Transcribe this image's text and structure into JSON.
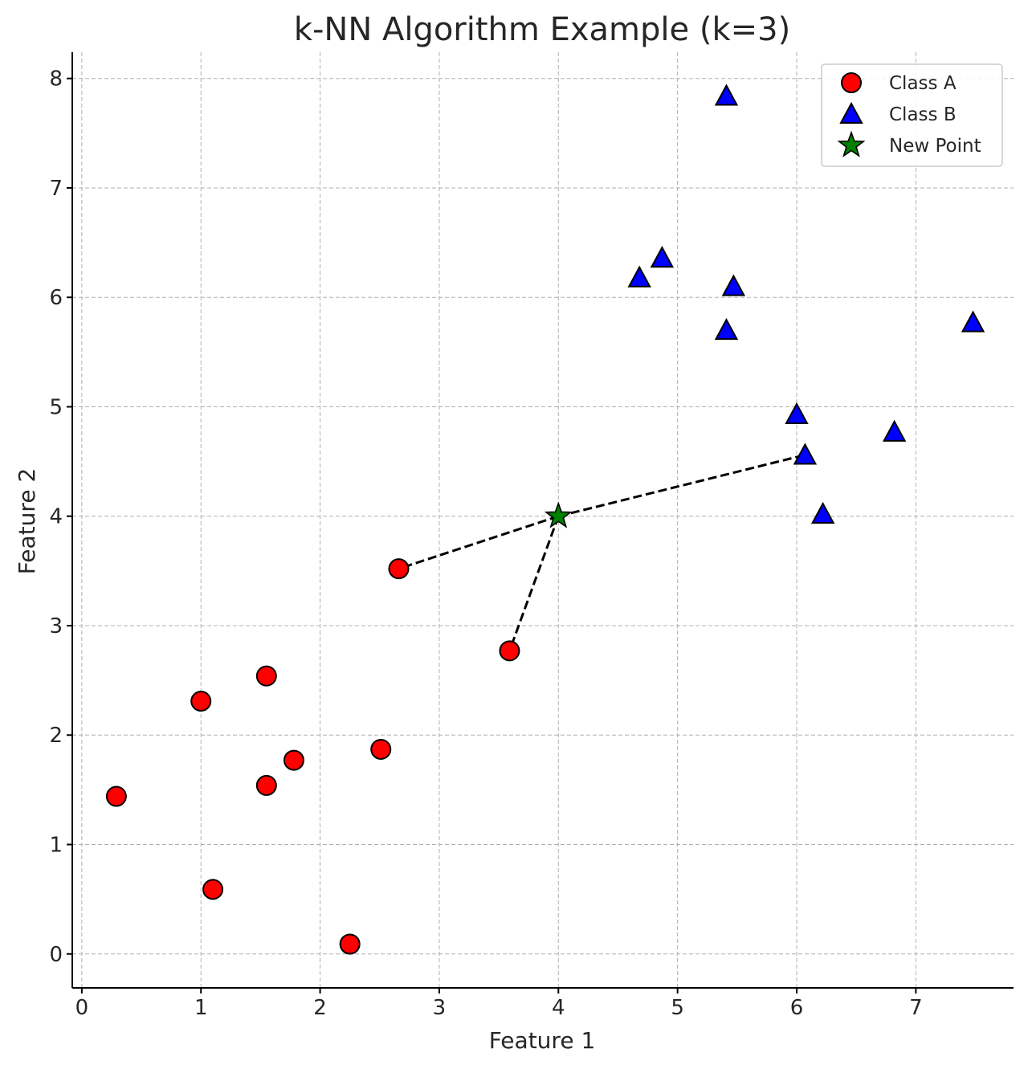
{
  "chart_data": {
    "type": "scatter",
    "title": "k-NN Algorithm Example (k=3)",
    "xlabel": "Feature 1",
    "ylabel": "Feature 2",
    "xlim": [
      -0.08,
      7.82
    ],
    "ylim": [
      -0.31,
      8.24
    ],
    "xticks": [
      0,
      1,
      2,
      3,
      4,
      5,
      6,
      7
    ],
    "yticks": [
      0,
      1,
      2,
      3,
      4,
      5,
      6,
      7,
      8
    ],
    "grid": true,
    "legend_position": "top-right",
    "series": [
      {
        "name": "Class A",
        "marker": "circle",
        "color": "#ff0000",
        "points": [
          [
            0.29,
            1.44
          ],
          [
            1.0,
            2.31
          ],
          [
            1.1,
            0.59
          ],
          [
            1.55,
            2.54
          ],
          [
            1.55,
            1.54
          ],
          [
            1.78,
            1.77
          ],
          [
            2.25,
            0.09
          ],
          [
            2.51,
            1.87
          ],
          [
            2.66,
            3.52
          ],
          [
            3.59,
            2.77
          ]
        ]
      },
      {
        "name": "Class B",
        "marker": "triangle",
        "color": "#0000ff",
        "points": [
          [
            5.41,
            7.84
          ],
          [
            4.68,
            6.18
          ],
          [
            4.87,
            6.36
          ],
          [
            5.47,
            6.1
          ],
          [
            5.41,
            5.7
          ],
          [
            7.48,
            5.77
          ],
          [
            6.0,
            4.93
          ],
          [
            6.07,
            4.56
          ],
          [
            6.82,
            4.77
          ],
          [
            6.22,
            4.02
          ]
        ]
      },
      {
        "name": "New Point",
        "marker": "star",
        "color": "#008000",
        "points": [
          [
            4.0,
            4.0
          ]
        ]
      }
    ],
    "neighbor_lines": [
      {
        "from": [
          4.0,
          4.0
        ],
        "to": [
          2.66,
          3.52
        ]
      },
      {
        "from": [
          4.0,
          4.0
        ],
        "to": [
          3.59,
          2.77
        ]
      },
      {
        "from": [
          4.0,
          4.0
        ],
        "to": [
          6.07,
          4.56
        ]
      }
    ]
  }
}
